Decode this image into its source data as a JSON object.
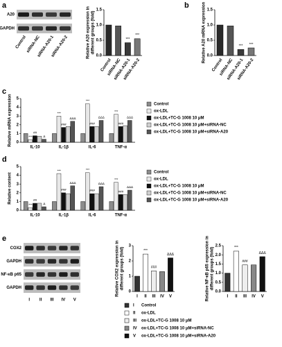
{
  "chart_data": [
    {
      "type": "bar",
      "panel": "a",
      "ylabel": [
        "Relative A20 expression in",
        "different groups (fold)"
      ],
      "categories": [
        "Control",
        "siRNA-NC",
        "siRNA-A20-1",
        "siRNA-A20-2"
      ],
      "values": [
        1.0,
        0.97,
        0.42,
        0.55
      ],
      "colors": [
        "#2a2a2a",
        "#555555",
        "#3a3a3a",
        "#777777"
      ],
      "ylim": [
        0,
        1.5
      ],
      "yticks": [
        {
          "value": 0,
          "label": "0.0"
        },
        0.5,
        {
          "value": 1,
          "label": "1.0"
        },
        1.5
      ],
      "sig": [
        null,
        null,
        "***",
        "***"
      ],
      "blot": {
        "rows": [
          "A20",
          "GAPDH"
        ]
      }
    },
    {
      "type": "bar",
      "panel": "b",
      "ylabel": [
        "Relative A20 mRNA expression"
      ],
      "categories": [
        "Control",
        "siRNA-NC",
        "siRNA-A20-1",
        "siRNA-A20-2"
      ],
      "values": [
        1.0,
        0.97,
        0.2,
        0.25
      ],
      "colors": [
        "#2a2a2a",
        "#555555",
        "#3a3a3a",
        "#777777"
      ],
      "ylim": [
        0,
        1.5
      ],
      "yticks": [
        {
          "value": 0,
          "label": "0.0"
        },
        0.5,
        {
          "value": 1,
          "label": "1.0"
        },
        1.5
      ],
      "sig": [
        null,
        null,
        "***",
        "***"
      ]
    },
    {
      "type": "bar",
      "panel": "c",
      "ylabel": [
        "Relative mRNA expression"
      ],
      "categories": [
        "IL-10",
        "IL-1β",
        "IL-6",
        "TNF-α"
      ],
      "ylim": [
        0,
        5
      ],
      "yticks": [
        0,
        1,
        2,
        3,
        4,
        5
      ],
      "series": [
        {
          "name": "Control",
          "color": "#8c8c8c",
          "values": [
            1,
            1,
            1,
            1
          ]
        },
        {
          "name": "ox-LDL",
          "color": "#e8e8e8",
          "values": [
            0.3,
            3.0,
            4.4,
            3.2
          ],
          "sig": [
            "***",
            "***",
            "***",
            "***"
          ]
        },
        {
          "name": "ox-LDL+TC-G 1008 10 μM",
          "color": "#111111",
          "values": [
            0.75,
            1.7,
            1.8,
            1.8
          ],
          "sig": [
            "##",
            "###",
            "###",
            "###"
          ]
        },
        {
          "name": "ox-LDL+TC-G 1008 10 μM+siRNA-NC",
          "color": "#cfcfcf",
          "values": [
            0.7,
            1.8,
            1.8,
            1.9
          ]
        },
        {
          "name": "ox-LDL+TC-G 1008 10 μM+siRNA-A20",
          "color": "#555555",
          "values": [
            0.35,
            2.4,
            2.5,
            2.5
          ],
          "sig": [
            "Δ",
            "ΔΔΔ",
            "ΔΔΔ",
            "ΔΔΔ"
          ]
        }
      ]
    },
    {
      "type": "bar",
      "panel": "d",
      "ylabel": [
        "Relative content"
      ],
      "categories": [
        "IL-10",
        "IL-1β",
        "IL-6",
        "TNF-α"
      ],
      "ylim": [
        0,
        5
      ],
      "yticks": [
        0,
        1,
        2,
        3,
        4,
        5
      ],
      "series": [
        {
          "name": "Control",
          "color": "#8c8c8c",
          "values": [
            1,
            1,
            1,
            1
          ]
        },
        {
          "name": "ox-LDL",
          "color": "#e8e8e8",
          "values": [
            0.3,
            4.2,
            4.3,
            3.2
          ],
          "sig": [
            "***",
            "***",
            "***",
            "***"
          ]
        },
        {
          "name": "ox-LDL+TC-G 1008 10 μM",
          "color": "#111111",
          "values": [
            0.8,
            2.0,
            1.9,
            1.8
          ],
          "sig": [
            "##",
            "###",
            "###",
            "###"
          ]
        },
        {
          "name": "ox-LDL+TC-G 1008 10 μM+siRNA-NC",
          "color": "#cfcfcf",
          "values": [
            0.8,
            1.9,
            1.9,
            1.8
          ]
        },
        {
          "name": "ox-LDL+TC-G 1008 10 μM+siRNA-A20",
          "color": "#555555",
          "values": [
            0.4,
            2.8,
            2.7,
            2.3
          ],
          "sig": [
            "Δ",
            "ΔΔΔ",
            "ΔΔΔ",
            "ΔΔΔ"
          ]
        }
      ]
    },
    {
      "type": "bar",
      "panel": "e",
      "ylabel": [
        "Relative COX2 expression in",
        "different groups (fold)"
      ],
      "categories": [
        "I",
        "II",
        "III",
        "IV",
        "V"
      ],
      "values": [
        1.0,
        2.45,
        1.35,
        1.3,
        2.2
      ],
      "colors": [
        "#333333",
        "#ffffff",
        "#eeeeee",
        "#888888",
        "#111111"
      ],
      "ylim": [
        0,
        3
      ],
      "yticks": [
        0,
        1,
        2,
        3
      ],
      "sig": [
        null,
        "***",
        "###",
        null,
        "ΔΔΔ"
      ],
      "blot": {
        "rows": [
          "COX2",
          "GAPDH",
          "NF-κB p65",
          "GAPDH"
        ]
      },
      "legend_names": [
        "Control",
        "ox-LDL",
        "ox-LDL+TC-G 1008 10 μM",
        "ox-LDL+TC-G 1008 10 μM+siRNA-NC",
        "ox-LDL+TC-G 1008 10 μM+siRNA-A20"
      ]
    },
    {
      "type": "bar",
      "ylabel": [
        "Relative NF-κB p65 expression in",
        "different groups (fold)"
      ],
      "categories": [
        "I",
        "II",
        "III",
        "IV",
        "V"
      ],
      "values": [
        1.0,
        2.2,
        1.45,
        1.45,
        1.9
      ],
      "colors": [
        "#333333",
        "#ffffff",
        "#eeeeee",
        "#888888",
        "#111111"
      ],
      "ylim": [
        0,
        2.5
      ],
      "yticks": [
        {
          "value": 0,
          "label": "0.0"
        },
        0.5,
        {
          "value": 1,
          "label": "1.0"
        },
        1.5,
        {
          "value": 2,
          "label": "2.0"
        },
        2.5
      ],
      "sig": [
        null,
        "***",
        "###",
        null,
        "ΔΔΔ"
      ]
    }
  ]
}
